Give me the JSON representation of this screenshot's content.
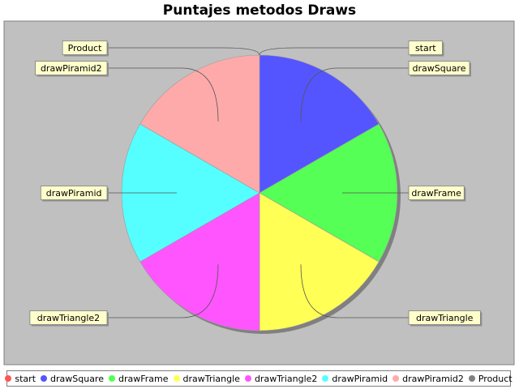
{
  "chart_data": {
    "type": "pie",
    "title": "Puntajes metodos Draws",
    "slices": [
      {
        "name": "start",
        "value": 0,
        "color": "#ff5555"
      },
      {
        "name": "drawSquare",
        "value": 1,
        "color": "#5555ff"
      },
      {
        "name": "drawFrame",
        "value": 1,
        "color": "#55ff55"
      },
      {
        "name": "drawTriangle",
        "value": 1,
        "color": "#ffff55"
      },
      {
        "name": "drawTriangle2",
        "value": 1,
        "color": "#ff55ff"
      },
      {
        "name": "drawPiramid",
        "value": 1,
        "color": "#55ffff"
      },
      {
        "name": "drawPiramid2",
        "value": 1,
        "color": "#ffaaaa"
      },
      {
        "name": "Product",
        "value": 0,
        "color": "#808080"
      }
    ],
    "legend_position": "bottom",
    "plot_background": "#c0c0c0",
    "label_background": "#ffffcc"
  }
}
